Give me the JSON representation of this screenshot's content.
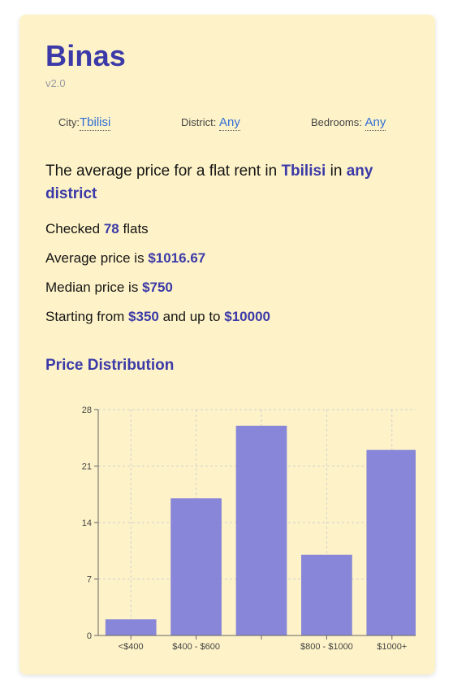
{
  "app": {
    "title": "Binas",
    "version": "v2.0"
  },
  "filters": {
    "city_label": "City:",
    "city_value": "Tbilisi",
    "district_label": "District:",
    "district_value": "Any",
    "bedrooms_label": "Bedrooms:",
    "bedrooms_value": "Any"
  },
  "summary": {
    "prefix": "The average price for a flat rent in",
    "city": "Tbilisi",
    "mid": "in",
    "district": "any district"
  },
  "stats": {
    "checked_prefix": "Checked",
    "checked_count": "78",
    "checked_suffix": "flats",
    "average_prefix": "Average price is",
    "average_value": "$1016.67",
    "median_prefix": "Median price is",
    "median_value": "$750",
    "range_prefix": "Starting from",
    "range_min": "$350",
    "range_mid": "and up to",
    "range_max": "$10000"
  },
  "section": {
    "title": "Price Distribution"
  },
  "colors": {
    "accent": "#3b3aa8",
    "link": "#2e6dd6",
    "card_bg": "#fef3c8",
    "bar": "#8886d8"
  },
  "chart_data": {
    "type": "bar",
    "categories": [
      "<$400",
      "$400 - $600",
      "",
      "$800 - $1000",
      "$1000+"
    ],
    "values": [
      2,
      17,
      26,
      10,
      23
    ],
    "yticks": [
      0,
      7,
      14,
      21,
      28
    ],
    "ylim": [
      0,
      28
    ],
    "grid": true,
    "title": "",
    "xlabel": "",
    "ylabel": ""
  }
}
